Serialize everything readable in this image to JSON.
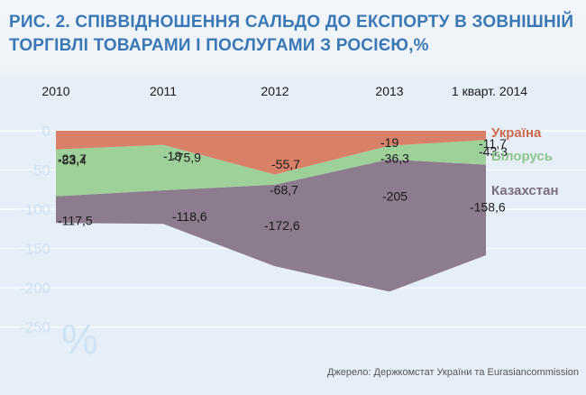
{
  "title": "РИС. 2. СПІВВІДНОШЕННЯ САЛЬДО ДО ЕКСПОРТУ В ЗОВНІШНІЙ ТОРГІВЛІ ТОВАРАМИ І ПОСЛУГАМИ З РОСІЄЮ,%",
  "source": "Джерело: Держкомстат України та Eurasiancommission",
  "unit_symbol": "%",
  "colors": {
    "ukraine": "#d98068",
    "belarus": "#9ed09a",
    "kazakhstan": "#8d7b8e",
    "title": "#3a78b5",
    "legend_ukraine": "#cc6a4f",
    "legend_belarus": "#8dc58a",
    "legend_kazakhstan": "#7a6c7c"
  },
  "chart_data": {
    "type": "area",
    "categories": [
      "2010",
      "2011",
      "2012",
      "2013",
      "1 кварт. 2014"
    ],
    "yticks": [
      0,
      -50,
      -100,
      -150,
      -200,
      -250
    ],
    "ylim": [
      -270,
      0
    ],
    "grid": true,
    "legend_position": "right",
    "series": [
      {
        "name": "Україна",
        "values": [
          -23.7,
          -18,
          -55.7,
          -19,
          -11.7
        ],
        "labels": [
          "-23,7",
          "-18",
          "-55,7",
          "-19",
          "-11,7"
        ]
      },
      {
        "name": "Білорусь",
        "values": [
          -83.4,
          -75.9,
          -68.7,
          -36.3,
          -43.3
        ],
        "labels": [
          "-83,4",
          "-75,9",
          "-68,7",
          "-36,3",
          "-43,3"
        ]
      },
      {
        "name": "Казахстан",
        "values": [
          -117.5,
          -118.6,
          -172.6,
          -205,
          -158.6
        ],
        "labels": [
          "-117,5",
          "-118,6",
          "-172,6",
          "-205",
          "-158,6"
        ]
      }
    ]
  }
}
